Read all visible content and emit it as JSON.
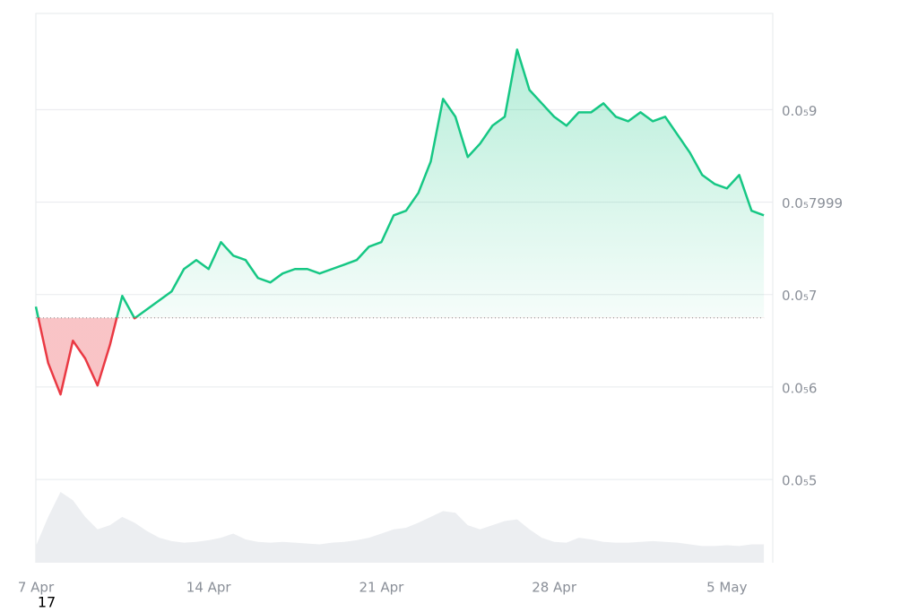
{
  "chart_data": {
    "type": "line",
    "categories": [
      "7 Apr",
      null,
      null,
      null,
      null,
      null,
      null,
      null,
      null,
      null,
      null,
      null,
      null,
      null,
      "14 Apr",
      null,
      null,
      null,
      null,
      null,
      null,
      null,
      null,
      null,
      null,
      null,
      null,
      null,
      "21 Apr",
      null,
      null,
      null,
      null,
      null,
      null,
      null,
      null,
      null,
      null,
      null,
      null,
      null,
      "28 Apr",
      null,
      null,
      null,
      null,
      null,
      null,
      null,
      null,
      null,
      null,
      null,
      null,
      null,
      "5 May",
      null,
      null,
      null
    ],
    "values": [
      6.869e-06,
      6.259e-06,
      5.92e-06,
      6.501e-06,
      6.308e-06,
      6.017e-06,
      6.453e-06,
      6.985e-06,
      6.743e-06,
      6.84e-06,
      6.937e-06,
      7.034e-06,
      7.276e-06,
      7.373e-06,
      7.276e-06,
      7.567e-06,
      7.421e-06,
      7.373e-06,
      7.179e-06,
      7.131e-06,
      7.228e-06,
      7.276e-06,
      7.276e-06,
      7.228e-06,
      7.276e-06,
      7.324e-06,
      7.373e-06,
      7.518e-06,
      7.567e-06,
      7.857e-06,
      7.906e-06,
      8.099e-06,
      8.438e-06,
      9.116e-06,
      8.923e-06,
      8.487e-06,
      8.632e-06,
      8.826e-06,
      8.923e-06,
      9.649e-06,
      9.213e-06,
      9.068e-06,
      8.923e-06,
      8.826e-06,
      8.971e-06,
      8.971e-06,
      9.068e-06,
      8.923e-06,
      8.874e-06,
      8.971e-06,
      8.874e-06,
      8.923e-06,
      8.729e-06,
      8.535e-06,
      8.293e-06,
      8.196e-06,
      8.148e-06,
      8.293e-06,
      7.906e-06,
      7.857e-06
    ],
    "volume": [
      20,
      55,
      85,
      75,
      55,
      40,
      45,
      55,
      48,
      38,
      30,
      26,
      24,
      25,
      27,
      30,
      35,
      28,
      25,
      24,
      25,
      24,
      23,
      22,
      24,
      25,
      27,
      30,
      35,
      40,
      42,
      48,
      55,
      62,
      60,
      45,
      40,
      45,
      50,
      52,
      40,
      30,
      25,
      24,
      30,
      28,
      25,
      24,
      24,
      25,
      26,
      25,
      24,
      22,
      20,
      20,
      21,
      20,
      22,
      22
    ],
    "vlim": [
      0,
      100
    ],
    "baseline": 6.748e-06,
    "ylim": [
      4.1e-06,
      1.004e-05
    ],
    "yticks": [
      {
        "value": 9e-06,
        "label": "0.0₅9"
      },
      {
        "value": 7.999e-06,
        "label": "0.0₅7999"
      },
      {
        "value": 7e-06,
        "label": "0.0₅7"
      },
      {
        "value": 6e-06,
        "label": "0.0₅6"
      },
      {
        "value": 5e-06,
        "label": "0.0₅5"
      }
    ],
    "up_color": "#16c784",
    "down_color": "#ea3943",
    "volume_color": "#eceef1",
    "grid": true,
    "annotation": "17"
  }
}
